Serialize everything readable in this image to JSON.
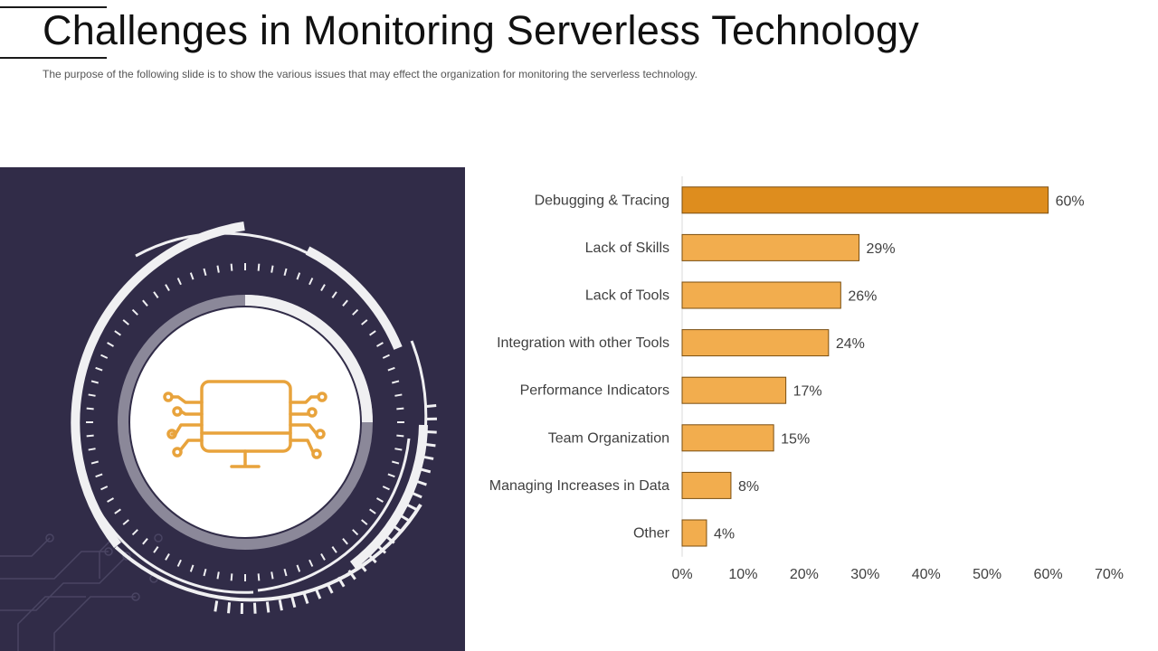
{
  "slide": {
    "title": "Challenges in Monitoring Serverless Technology",
    "subtitle": "The purpose of the following slide is to show the various issues that may effect the organization for monitoring the serverless technology."
  },
  "graphic": {
    "icon": "computer-circuit-icon",
    "accent_color": "#e8a33c",
    "panel_color": "#312c48"
  },
  "chart_data": {
    "type": "bar",
    "orientation": "horizontal",
    "categories": [
      "Debugging & Tracing",
      "Lack of Skills",
      "Lack of Tools",
      "Integration with other Tools",
      "Performance Indicators",
      "Team Organization",
      "Managing Increases in Data",
      "Other"
    ],
    "values": [
      60,
      29,
      26,
      24,
      17,
      15,
      8,
      4
    ],
    "value_labels": [
      "60%",
      "29%",
      "26%",
      "24%",
      "17%",
      "15%",
      "8%",
      "4%"
    ],
    "xlim": [
      0,
      70
    ],
    "x_ticks": [
      "0%",
      "10%",
      "20%",
      "30%",
      "40%",
      "50%",
      "60%",
      "70%"
    ],
    "grid": false,
    "highlight_index": 0,
    "colors": {
      "bar": "#f2ad4e",
      "highlight": "#de8d1e",
      "border": "#7a4e10"
    }
  }
}
